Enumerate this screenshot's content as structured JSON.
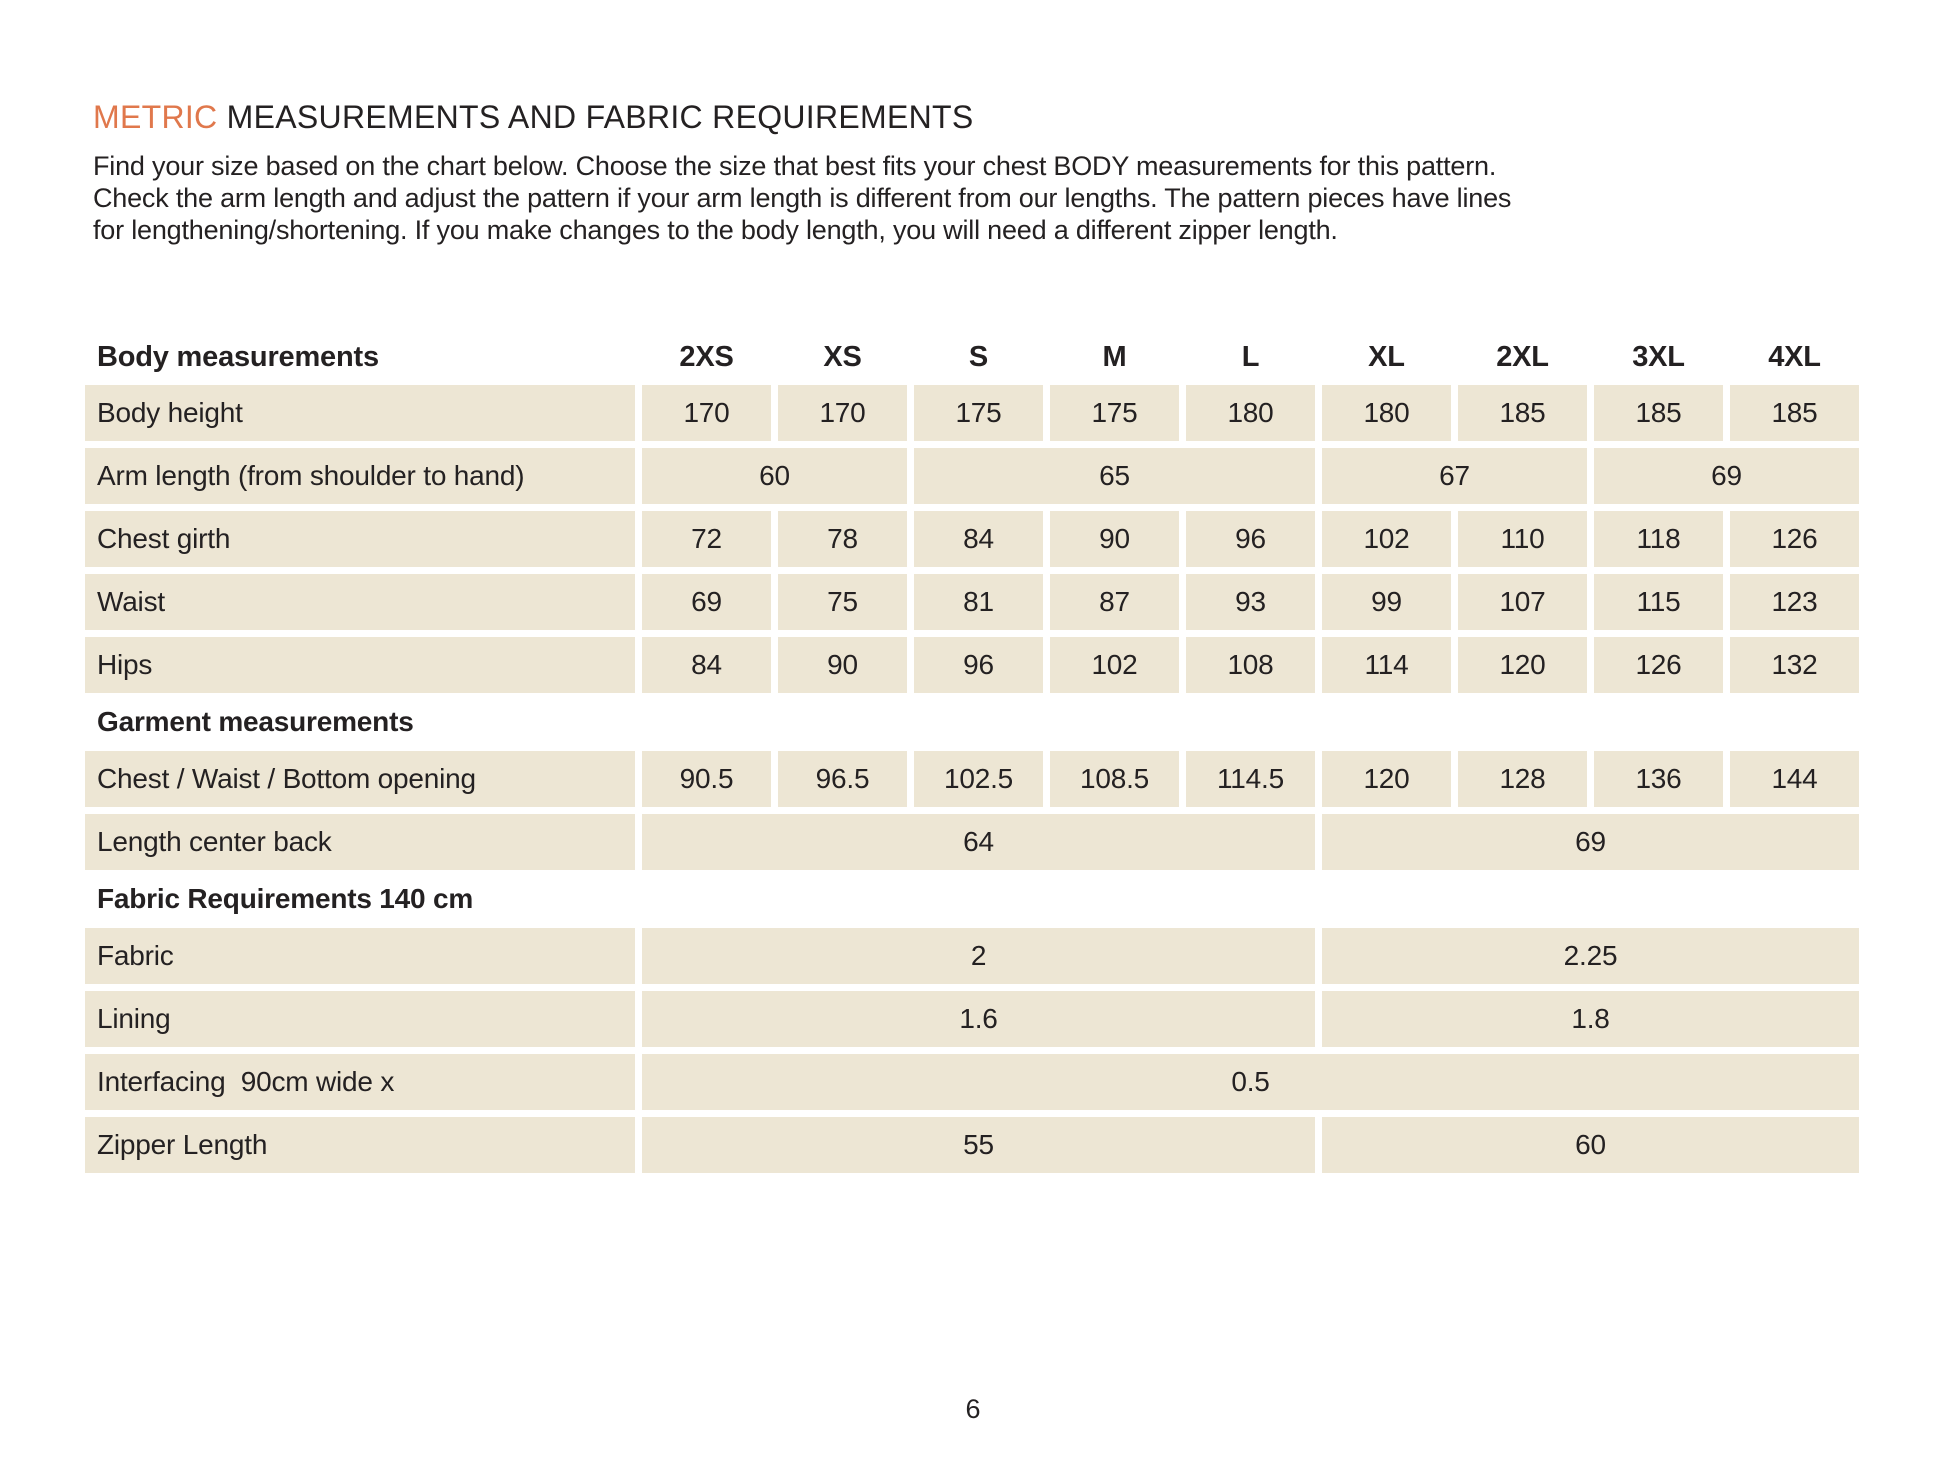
{
  "title": {
    "highlight": "METRIC",
    "rest": " MEASUREMENTS AND FABRIC REQUIREMENTS"
  },
  "intro_lines": [
    "Find your size based on the chart below. Choose the size that best fits your chest BODY measurements for this pattern.",
    "Check the arm length and adjust the pattern if your arm length is different from our lengths. The pattern pieces have lines",
    "for lengthening/shortening. If you make changes to the body length, you will need a different zipper length."
  ],
  "table": {
    "header_label": "Body measurements",
    "sizes": [
      "2XS",
      "XS",
      "S",
      "M",
      "L",
      "XL",
      "2XL",
      "3XL",
      "4XL"
    ],
    "rows": [
      {
        "label": "Body height",
        "values": [
          "170",
          "170",
          "175",
          "175",
          "180",
          "180",
          "185",
          "185",
          "185"
        ],
        "spans": [
          1,
          1,
          1,
          1,
          1,
          1,
          1,
          1,
          1
        ]
      },
      {
        "label": "Arm length (from shoulder to hand)",
        "values": [
          "60",
          "65",
          "67",
          "69"
        ],
        "spans": [
          2,
          3,
          2,
          2
        ]
      },
      {
        "label": "Chest girth",
        "values": [
          "72",
          "78",
          "84",
          "90",
          "96",
          "102",
          "110",
          "118",
          "126"
        ],
        "spans": [
          1,
          1,
          1,
          1,
          1,
          1,
          1,
          1,
          1
        ]
      },
      {
        "label": "Waist",
        "values": [
          "69",
          "75",
          "81",
          "87",
          "93",
          "99",
          "107",
          "115",
          "123"
        ],
        "spans": [
          1,
          1,
          1,
          1,
          1,
          1,
          1,
          1,
          1
        ]
      },
      {
        "label": "Hips",
        "values": [
          "84",
          "90",
          "96",
          "102",
          "108",
          "114",
          "120",
          "126",
          "132"
        ],
        "spans": [
          1,
          1,
          1,
          1,
          1,
          1,
          1,
          1,
          1
        ]
      },
      {
        "section": "Garment measurements"
      },
      {
        "label": "Chest / Waist / Bottom opening",
        "values": [
          "90.5",
          "96.5",
          "102.5",
          "108.5",
          "114.5",
          "120",
          "128",
          "136",
          "144"
        ],
        "spans": [
          1,
          1,
          1,
          1,
          1,
          1,
          1,
          1,
          1
        ]
      },
      {
        "label": "Length center back",
        "values": [
          "64",
          "69"
        ],
        "spans": [
          5,
          4
        ]
      },
      {
        "section": "Fabric Requirements 140 cm"
      },
      {
        "label": "Fabric",
        "values": [
          "2",
          "2.25"
        ],
        "spans": [
          5,
          4
        ]
      },
      {
        "label": "Lining",
        "values": [
          "1.6",
          "1.8"
        ],
        "spans": [
          5,
          4
        ]
      },
      {
        "label": "Interfacing  90cm wide x",
        "values": [
          "0.5"
        ],
        "spans": [
          9
        ]
      },
      {
        "label": "Zipper Length",
        "values": [
          "55",
          "60"
        ],
        "spans": [
          5,
          4
        ]
      }
    ]
  },
  "footer": {
    "page_number": "6"
  },
  "colors": {
    "accent_orange": "#E0784C",
    "cell_beige": "#EDE6D4",
    "text_dark": "#242122"
  }
}
